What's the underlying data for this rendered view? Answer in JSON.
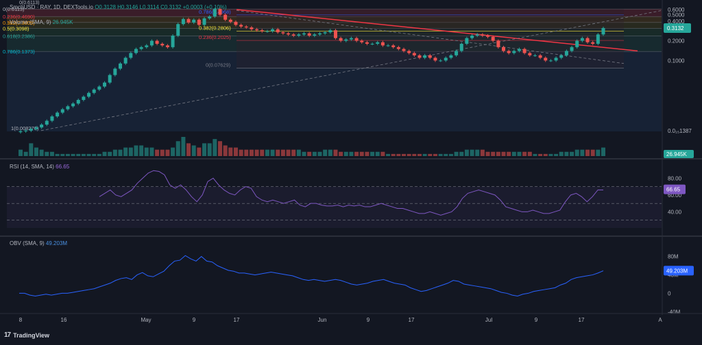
{
  "header": {
    "symbol": "SmchUSD · RAY, 1D, DEXTools.io",
    "ohlc": "O0.3128  H0.3146  L0.3114  C0.3132  +0.0003 (+0.10%)",
    "fib_top_label": "0(0.6113)"
  },
  "indicators": {
    "volume": {
      "label": "Volume (SMA, 9)",
      "value": "26.945K"
    },
    "rsi": {
      "label": "RSI (14, SMA, 14)",
      "value": "66.65"
    },
    "obv": {
      "label": "OBV (SMA, 9)",
      "value": "49.203M"
    }
  },
  "branding": {
    "name": "TradingView"
  },
  "colors": {
    "background": "#131722",
    "up": "#26a69a",
    "down": "#ef5350",
    "trendline": "#f23645",
    "rsi_line": "#7e57c2",
    "obv_line": "#2962ff",
    "price_tag": "#26a69a",
    "rsi_tag": "#7e57c2",
    "obv_tag": "#2962ff"
  },
  "chart_data": {
    "type": "candlestick",
    "x_ticks": [
      "8",
      "16",
      "May",
      "9",
      "17",
      "Jun",
      "9",
      "17",
      "Jul",
      "9",
      "17",
      "A"
    ],
    "price_axis": {
      "scale": "log",
      "ticks": [
        "0.6000",
        "0.5000",
        "0.4000",
        "0.3000",
        "0.2000",
        "0.1000",
        "0.0₁₅1387"
      ],
      "last_price": "0.3132"
    },
    "close_series": [
      0.0083,
      0.0085,
      0.009,
      0.0095,
      0.0105,
      0.012,
      0.014,
      0.016,
      0.018,
      0.02,
      0.022,
      0.025,
      0.028,
      0.032,
      0.036,
      0.04,
      0.046,
      0.06,
      0.075,
      0.09,
      0.11,
      0.13,
      0.15,
      0.16,
      0.17,
      0.2,
      0.18,
      0.17,
      0.16,
      0.24,
      0.36,
      0.43,
      0.38,
      0.42,
      0.35,
      0.44,
      0.47,
      0.61,
      0.5,
      0.42,
      0.39,
      0.35,
      0.33,
      0.32,
      0.3,
      0.29,
      0.28,
      0.28,
      0.3,
      0.27,
      0.26,
      0.25,
      0.24,
      0.25,
      0.26,
      0.24,
      0.25,
      0.26,
      0.27,
      0.29,
      0.22,
      0.2,
      0.21,
      0.22,
      0.2,
      0.19,
      0.18,
      0.18,
      0.19,
      0.17,
      0.17,
      0.16,
      0.15,
      0.14,
      0.13,
      0.12,
      0.11,
      0.12,
      0.11,
      0.1,
      0.1,
      0.11,
      0.12,
      0.14,
      0.18,
      0.22,
      0.24,
      0.25,
      0.24,
      0.23,
      0.2,
      0.16,
      0.14,
      0.13,
      0.14,
      0.15,
      0.13,
      0.12,
      0.12,
      0.11,
      0.1,
      0.1,
      0.11,
      0.12,
      0.14,
      0.16,
      0.2,
      0.22,
      0.19,
      0.18,
      0.25,
      0.3132
    ],
    "fib_left": [
      {
        "label": "0(0.6113)",
        "value": 0.6113
      },
      {
        "label": "0.236(0.4690)",
        "value": 0.469
      },
      {
        "label": "0.382(0.3809)",
        "value": 0.3809
      },
      {
        "label": "0.5(0.3098)",
        "value": 0.3098
      },
      {
        "label": "0.618(0.2386)",
        "value": 0.2386
      },
      {
        "label": "0.786(0.1373)",
        "value": 0.1373
      },
      {
        "label": "1(0.008270)",
        "value": 0.00827
      }
    ],
    "fib_right": [
      {
        "label": "0.786(0.4968)",
        "value": 0.4968
      },
      {
        "label": "0.382(0.2806)",
        "value": 0.2806
      },
      {
        "label": "0.236(0.2025)",
        "value": 0.2025
      },
      {
        "label": "0(0.07629)",
        "value": 0.07629
      }
    ],
    "volume": [
      3,
      2,
      6,
      4,
      3,
      2,
      2,
      1,
      1,
      1,
      1,
      1,
      1,
      1,
      1,
      1,
      2,
      2,
      3,
      3,
      4,
      4,
      5,
      5,
      4,
      4,
      3,
      3,
      3,
      4,
      7,
      9,
      6,
      5,
      4,
      6,
      6,
      8,
      7,
      5,
      4,
      4,
      3,
      3,
      3,
      3,
      3,
      3,
      3,
      3,
      3,
      3,
      3,
      3,
      2,
      2,
      2,
      2,
      3,
      3,
      3,
      2,
      2,
      2,
      2,
      2,
      2,
      2,
      2,
      2,
      1,
      1,
      1,
      1,
      1,
      1,
      1,
      1,
      1,
      1,
      1,
      1,
      1,
      2,
      2,
      3,
      3,
      3,
      3,
      2,
      2,
      2,
      2,
      2,
      2,
      2,
      2,
      2,
      1,
      1,
      1,
      1,
      1,
      2,
      2,
      2,
      3,
      3,
      3,
      3,
      3,
      4
    ],
    "rsi_axis": [
      "80.00",
      "60.00",
      "40.00"
    ],
    "rsi": [
      58,
      62,
      66,
      60,
      58,
      62,
      66,
      74,
      80,
      86,
      89,
      88,
      84,
      72,
      68,
      72,
      66,
      58,
      52,
      60,
      76,
      80,
      72,
      66,
      62,
      60,
      66,
      70,
      68,
      58,
      54,
      52,
      54,
      52,
      50,
      52,
      54,
      48,
      46,
      50,
      50,
      48,
      47,
      47,
      48,
      46,
      48,
      47,
      48,
      46,
      46,
      48,
      50,
      48,
      46,
      44,
      44,
      42,
      40,
      38,
      38,
      40,
      38,
      36,
      38,
      40,
      46,
      56,
      62,
      64,
      66,
      64,
      62,
      60,
      54,
      46,
      44,
      42,
      40,
      40,
      42,
      40,
      38,
      38,
      40,
      42,
      52,
      60,
      62,
      58,
      52,
      58,
      66,
      66
    ],
    "obv_axis": [
      "80M",
      "40M",
      "0",
      "-40M"
    ],
    "obv": [
      0,
      0,
      -4,
      -6,
      -4,
      -2,
      -4,
      -2,
      0,
      0,
      2,
      4,
      6,
      8,
      10,
      14,
      18,
      22,
      28,
      32,
      34,
      30,
      40,
      45,
      38,
      36,
      42,
      48,
      60,
      70,
      72,
      82,
      75,
      70,
      80,
      70,
      68,
      60,
      55,
      50,
      48,
      44,
      44,
      42,
      40,
      42,
      44,
      46,
      44,
      42,
      40,
      38,
      34,
      30,
      28,
      30,
      28,
      26,
      28,
      30,
      28,
      24,
      20,
      18,
      20,
      22,
      26,
      28,
      30,
      26,
      22,
      20,
      18,
      12,
      8,
      4,
      6,
      10,
      14,
      18,
      22,
      28,
      26,
      20,
      18,
      16,
      14,
      12,
      10,
      6,
      2,
      0,
      -4,
      -6,
      -2,
      0,
      4,
      6,
      8,
      10,
      12,
      18,
      22,
      30,
      34,
      36,
      38,
      40,
      44,
      49
    ]
  }
}
